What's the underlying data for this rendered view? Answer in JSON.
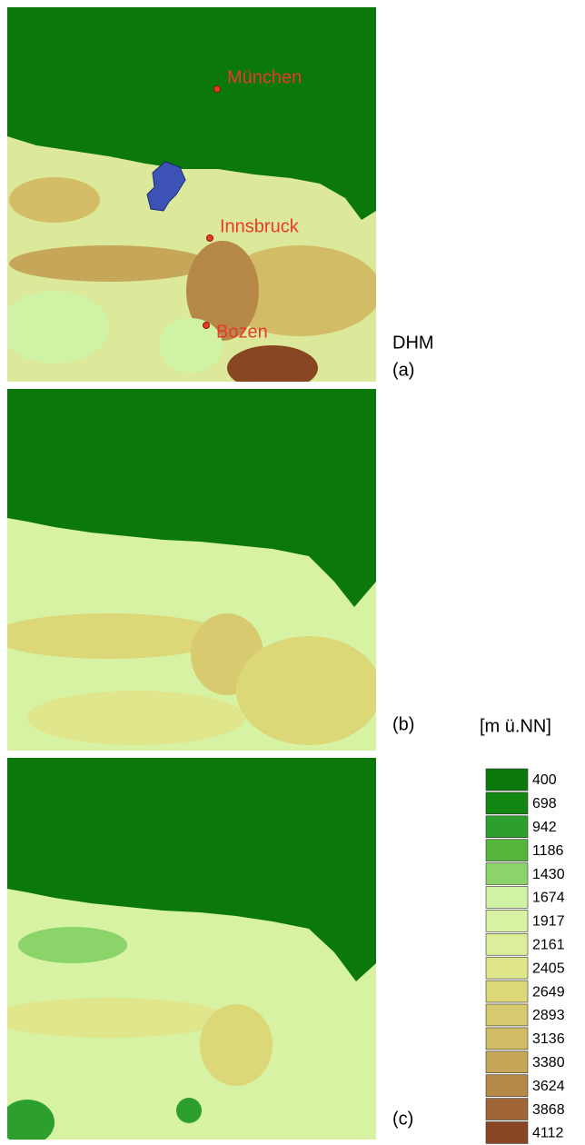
{
  "panels": [
    {
      "label": "DHM",
      "sublabel": "(a)",
      "cities": [
        "München",
        "Innsbruck",
        "Bozen"
      ]
    },
    {
      "label": "(b)"
    },
    {
      "label": "(c)"
    }
  ],
  "legend": {
    "title": "[m ü.NN]",
    "entries": [
      {
        "value": 400,
        "color": "#0a780a"
      },
      {
        "value": 698,
        "color": "#118611"
      },
      {
        "value": 942,
        "color": "#2d9f2d"
      },
      {
        "value": 1186,
        "color": "#55b63c"
      },
      {
        "value": 1430,
        "color": "#8ad46a"
      },
      {
        "value": 1674,
        "color": "#cff2a4"
      },
      {
        "value": 1917,
        "color": "#d8f2a4"
      },
      {
        "value": 2161,
        "color": "#dcee9a"
      },
      {
        "value": 2405,
        "color": "#dfe68c"
      },
      {
        "value": 2649,
        "color": "#dcd878"
      },
      {
        "value": 2893,
        "color": "#d8ca6e"
      },
      {
        "value": 3136,
        "color": "#d2bc66"
      },
      {
        "value": 3380,
        "color": "#c6a658"
      },
      {
        "value": 3624,
        "color": "#b68848"
      },
      {
        "value": 3868,
        "color": "#a06638"
      },
      {
        "value": 4112,
        "color": "#884622"
      }
    ]
  }
}
